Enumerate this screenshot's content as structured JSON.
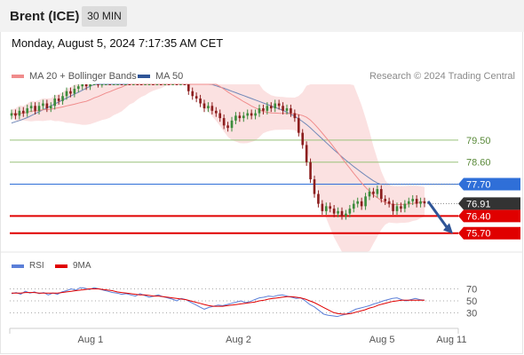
{
  "header": {
    "title": "Brent (ICE)",
    "timeframe": "30 MIN",
    "datetime": "Monday, August 5, 2024 7:17:35 AM CET"
  },
  "legend": {
    "items": [
      {
        "label": "MA 20 + Bollinger Bands",
        "color": "#f08c8c"
      },
      {
        "label": "MA 50",
        "color": "#2f5597"
      }
    ],
    "credit": "Research © 2024 Trading Central"
  },
  "rsi_legend": {
    "items": [
      {
        "label": "RSI",
        "color": "#5b7fd8"
      },
      {
        "label": "9MA",
        "color": "#e00000"
      }
    ]
  },
  "colors": {
    "candle_up": "#3c8c3c",
    "candle_down": "#8c1e1e",
    "bollinger_fill": "#fadcdc",
    "ma20": "#f08c8c",
    "ma50": "#7088b8",
    "green_level": "#99c27a",
    "blue_level": "#2f6fd8",
    "red_level": "#e00000",
    "current_price_bg": "#333333",
    "arrow": "#2f5597",
    "rsi": "#5b7fd8",
    "rsi_ma": "#e00000"
  },
  "chart_data": {
    "type": "candlestick",
    "ylim": [
      75.0,
      81.6
    ],
    "x_tick_labels": [
      {
        "label": "Aug 1",
        "x": 0.18
      },
      {
        "label": "Aug 2",
        "x": 0.51
      },
      {
        "label": "Aug 5",
        "x": 0.83
      },
      {
        "label": "Aug 11",
        "x": 0.985
      }
    ],
    "levels": [
      {
        "value": 79.5,
        "label": "79.50",
        "kind": "green"
      },
      {
        "value": 78.6,
        "label": "78.60",
        "kind": "green"
      },
      {
        "value": 77.7,
        "label": "77.70",
        "kind": "blue"
      },
      {
        "value": 76.4,
        "label": "76.40",
        "kind": "red"
      },
      {
        "value": 75.7,
        "label": "75.70",
        "kind": "red"
      }
    ],
    "current_price": {
      "value": 76.91,
      "label": "76.91"
    },
    "close_series": [
      80.6,
      80.5,
      80.7,
      80.6,
      80.8,
      80.9,
      80.7,
      80.9,
      81.0,
      80.8,
      80.9,
      81.2,
      81.1,
      81.3,
      81.5,
      81.4,
      81.6,
      81.7,
      81.8,
      81.7,
      81.9,
      82.0,
      81.8,
      82.1,
      82.2,
      82.0,
      82.1,
      82.2,
      82.1,
      82.3,
      82.2,
      82.4,
      82.3,
      82.2,
      82.3,
      82.4,
      82.3,
      82.4,
      82.3,
      82.5,
      82.3,
      82.4,
      82.2,
      82.3,
      82.1,
      81.5,
      81.3,
      81.2,
      81.0,
      80.8,
      80.9,
      80.7,
      80.6,
      80.4,
      80.1,
      80.0,
      80.3,
      80.5,
      80.4,
      80.5,
      80.6,
      80.5,
      80.6,
      80.8,
      80.7,
      80.9,
      80.8,
      81.0,
      80.9,
      80.7,
      80.8,
      80.6,
      80.4,
      79.8,
      79.3,
      78.6,
      77.9,
      77.3,
      76.9,
      76.6,
      76.8,
      76.7,
      76.5,
      76.6,
      76.4,
      76.5,
      76.7,
      76.9,
      77.0,
      76.8,
      77.2,
      77.4,
      77.3,
      77.5,
      77.1,
      77.0,
      76.9,
      76.6,
      76.8,
      76.7,
      76.9,
      77.0,
      77.1,
      76.9,
      77.0,
      76.91
    ],
    "ma50_series": [
      80.2,
      80.25,
      80.3,
      80.36,
      80.42,
      80.5,
      80.58,
      80.66,
      80.74,
      80.82,
      80.9,
      80.98,
      81.06,
      81.14,
      81.22,
      81.3,
      81.38,
      81.46,
      81.54,
      81.62,
      81.7,
      81.77,
      81.84,
      81.9,
      81.96,
      82.02,
      82.07,
      82.12,
      82.16,
      82.2,
      82.23,
      82.26,
      82.28,
      82.3,
      82.31,
      82.31,
      82.31,
      82.3,
      82.29,
      82.27,
      82.25,
      82.22,
      82.19,
      82.16,
      82.12,
      82.07,
      82.02,
      81.97,
      81.92,
      81.87,
      81.82,
      81.77,
      81.72,
      81.67,
      81.62,
      81.56,
      81.5,
      81.44,
      81.38,
      81.32,
      81.26,
      81.2,
      81.14,
      81.08,
      81.02,
      80.96,
      80.9,
      80.84,
      80.78,
      80.72,
      80.64,
      80.56,
      80.47,
      80.37,
      80.26,
      80.14,
      80.0,
      79.85,
      79.7,
      79.55,
      79.4,
      79.25,
      79.1,
      78.96,
      78.82,
      78.68,
      78.55,
      78.42,
      78.3,
      78.18,
      78.06,
      77.95,
      77.84,
      77.75,
      77.69
    ],
    "rsi": {
      "levels": [
        {
          "value": 70,
          "label": "70"
        },
        {
          "value": 50,
          "label": "50"
        },
        {
          "value": 30,
          "label": "30"
        }
      ],
      "values": [
        62,
        64,
        61,
        66,
        63,
        65,
        62,
        64,
        60,
        63,
        61,
        65,
        67,
        70,
        68,
        72,
        71,
        69,
        72,
        70,
        68,
        66,
        64,
        63,
        61,
        62,
        60,
        58,
        62,
        59,
        56,
        58,
        60,
        57,
        55,
        53,
        50,
        54,
        52,
        48,
        44,
        40,
        36,
        39,
        41,
        43,
        42,
        44,
        46,
        48,
        50,
        47,
        49,
        52,
        55,
        56,
        58,
        57,
        59,
        60,
        58,
        56,
        54,
        55,
        50,
        44,
        40,
        34,
        28,
        26,
        25,
        24,
        26,
        28,
        32,
        36,
        38,
        40,
        42,
        45,
        47,
        50,
        52,
        54,
        55,
        52,
        50,
        52,
        54,
        52,
        51
      ],
      "ma_values": [
        63,
        63,
        63,
        64,
        64,
        64,
        63,
        63,
        63,
        63,
        63,
        64,
        65,
        66,
        67,
        68,
        69,
        70,
        70,
        70,
        69,
        68,
        67,
        65,
        64,
        63,
        62,
        61,
        60,
        60,
        59,
        58,
        58,
        57,
        56,
        55,
        54,
        53,
        52,
        50,
        48,
        46,
        44,
        42,
        41,
        41,
        41,
        42,
        43,
        44,
        45,
        46,
        47,
        48,
        50,
        51,
        53,
        54,
        55,
        56,
        57,
        57,
        56,
        55,
        53,
        50,
        47,
        43,
        39,
        35,
        31,
        29,
        28,
        28,
        29,
        31,
        33,
        35,
        38,
        40,
        43,
        45,
        47,
        49,
        50,
        51,
        51,
        51,
        51,
        51,
        51
      ]
    }
  }
}
